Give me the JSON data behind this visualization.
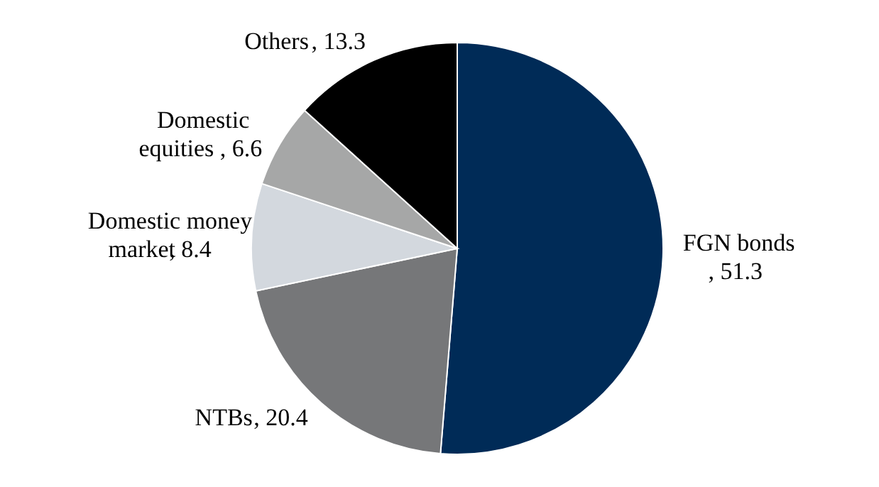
{
  "chart_data": {
    "type": "pie",
    "categories": [
      "FGN bonds",
      "NTBs",
      "Domestic money market",
      "Domestic equities",
      "Others"
    ],
    "values": [
      51.3,
      20.4,
      8.4,
      6.6,
      13.3
    ],
    "value_labels": [
      ", 51.3",
      ", 20.4",
      ", 8.4",
      ", 6.6",
      ", 13.3"
    ],
    "colors": [
      "#002b57",
      "#767779",
      "#d3d8de",
      "#a6a7a7",
      "#000000"
    ]
  }
}
